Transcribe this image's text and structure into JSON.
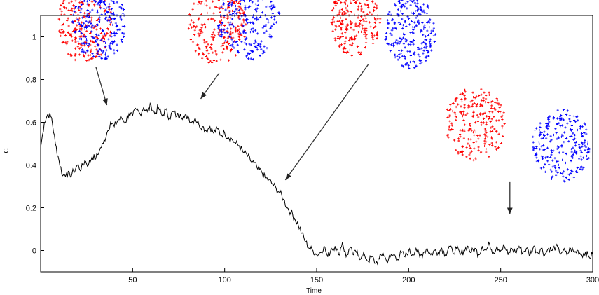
{
  "chart_data": {
    "type": "line",
    "title": "",
    "xlabel": "Time",
    "ylabel": "C",
    "xlim": [
      0,
      300
    ],
    "ylim": [
      -0.1,
      1.1
    ],
    "xticks": [
      50,
      100,
      150,
      200,
      250,
      300
    ],
    "yticks": [
      0,
      0.2,
      0.4,
      0.6,
      0.8,
      1
    ],
    "ytick_labels": [
      "0",
      "0.2",
      "0.4",
      "0.6",
      "0.8",
      "1"
    ],
    "grid": false,
    "series": [
      {
        "color": "#000000",
        "x": [
          0,
          2,
          4,
          6,
          8,
          10,
          12,
          14,
          16,
          18,
          20,
          22,
          24,
          26,
          28,
          30,
          32,
          34,
          36,
          38,
          40,
          42,
          44,
          46,
          48,
          50,
          52,
          54,
          56,
          58,
          60,
          62,
          64,
          66,
          68,
          70,
          72,
          74,
          76,
          78,
          80,
          82,
          84,
          86,
          88,
          90,
          92,
          94,
          96,
          98,
          100,
          102,
          104,
          106,
          108,
          110,
          112,
          114,
          116,
          118,
          120,
          122,
          124,
          126,
          128,
          130,
          132,
          134,
          136,
          138,
          140,
          142,
          144,
          146,
          148,
          150,
          152,
          154,
          156,
          158,
          160,
          162,
          164,
          166,
          168,
          170,
          172,
          174,
          176,
          178,
          180,
          182,
          184,
          186,
          188,
          190,
          192,
          194,
          196,
          198,
          200,
          202,
          204,
          206,
          208,
          210,
          212,
          214,
          216,
          218,
          220,
          222,
          224,
          226,
          228,
          230,
          232,
          234,
          236,
          238,
          240,
          242,
          244,
          246,
          248,
          250,
          252,
          254,
          256,
          258,
          260,
          262,
          264,
          266,
          268,
          270,
          272,
          274,
          276,
          278,
          280,
          282,
          284,
          286,
          288,
          290,
          292,
          294,
          296,
          298,
          300
        ],
        "y": [
          0.48,
          0.6,
          0.64,
          0.62,
          0.5,
          0.42,
          0.35,
          0.36,
          0.35,
          0.37,
          0.4,
          0.38,
          0.42,
          0.4,
          0.44,
          0.43,
          0.47,
          0.5,
          0.55,
          0.6,
          0.58,
          0.61,
          0.62,
          0.6,
          0.64,
          0.63,
          0.66,
          0.64,
          0.67,
          0.65,
          0.68,
          0.64,
          0.67,
          0.63,
          0.66,
          0.62,
          0.65,
          0.63,
          0.64,
          0.62,
          0.63,
          0.6,
          0.62,
          0.59,
          0.58,
          0.56,
          0.58,
          0.55,
          0.57,
          0.54,
          0.55,
          0.53,
          0.52,
          0.5,
          0.49,
          0.46,
          0.45,
          0.42,
          0.41,
          0.38,
          0.37,
          0.34,
          0.33,
          0.31,
          0.29,
          0.27,
          0.24,
          0.2,
          0.18,
          0.15,
          0.12,
          0.08,
          0.04,
          0.01,
          0.0,
          -0.02,
          -0.01,
          0.02,
          -0.03,
          0.01,
          0.02,
          -0.02,
          0.04,
          -0.03,
          0.01,
          -0.02,
          0.0,
          -0.04,
          -0.02,
          -0.05,
          -0.03,
          -0.06,
          -0.04,
          -0.01,
          -0.05,
          -0.03,
          -0.02,
          -0.04,
          -0.01,
          -0.03,
          0.0,
          -0.02,
          0.01,
          -0.03,
          -0.01,
          0.01,
          -0.02,
          0.0,
          -0.01,
          0.01,
          -0.02,
          0.02,
          -0.01,
          0.01,
          -0.02,
          0.0,
          0.02,
          -0.01,
          0.01,
          -0.02,
          0.02,
          0.0,
          0.03,
          -0.01,
          0.02,
          0.0,
          0.02,
          -0.02,
          0.01,
          -0.01,
          0.02,
          -0.01,
          0.01,
          -0.02,
          0.02,
          -0.01,
          0.01,
          -0.02,
          0.01,
          0.0,
          0.02,
          -0.01,
          0.0,
          -0.02,
          0.01,
          -0.01,
          0.0,
          -0.02,
          -0.01,
          -0.03,
          -0.02
        ]
      }
    ],
    "annotations": [
      {
        "type": "arrow",
        "from": [
          30,
          0.86
        ],
        "to": [
          36,
          0.68
        ]
      },
      {
        "type": "arrow",
        "from": [
          97,
          0.83
        ],
        "to": [
          87,
          0.71
        ]
      },
      {
        "type": "arrow",
        "from": [
          178,
          0.87
        ],
        "to": [
          133,
          0.33
        ]
      },
      {
        "type": "arrow",
        "from": [
          255,
          0.32
        ],
        "to": [
          255,
          0.17
        ]
      }
    ],
    "insets": [
      {
        "kind": "particle-clouds",
        "blobs": [
          {
            "color": "#ff0000",
            "center": [
              24,
              1.06
            ],
            "rx": 15,
            "ry": 0.18
          },
          {
            "color": "#0000ff",
            "center": [
              32,
              1.06
            ],
            "rx": 15,
            "ry": 0.17
          }
        ]
      },
      {
        "kind": "particle-clouds",
        "blobs": [
          {
            "color": "#ff0000",
            "center": [
              96,
              1.05
            ],
            "rx": 16,
            "ry": 0.18
          },
          {
            "color": "#0000ff",
            "center": [
              113,
              1.08
            ],
            "rx": 17,
            "ry": 0.19
          }
        ]
      },
      {
        "kind": "particle-clouds",
        "blobs": [
          {
            "color": "#ff0000",
            "center": [
              171,
              1.08
            ],
            "rx": 14,
            "ry": 0.17
          },
          {
            "color": "#0000ff",
            "center": [
              201,
              1.02
            ],
            "rx": 14,
            "ry": 0.17
          }
        ]
      },
      {
        "kind": "particle-clouds",
        "blobs": [
          {
            "color": "#ff0000",
            "center": [
              236,
              0.59
            ],
            "rx": 17,
            "ry": 0.17
          },
          {
            "color": "#0000ff",
            "center": [
              283,
              0.49
            ],
            "rx": 16,
            "ry": 0.17
          }
        ]
      }
    ]
  }
}
